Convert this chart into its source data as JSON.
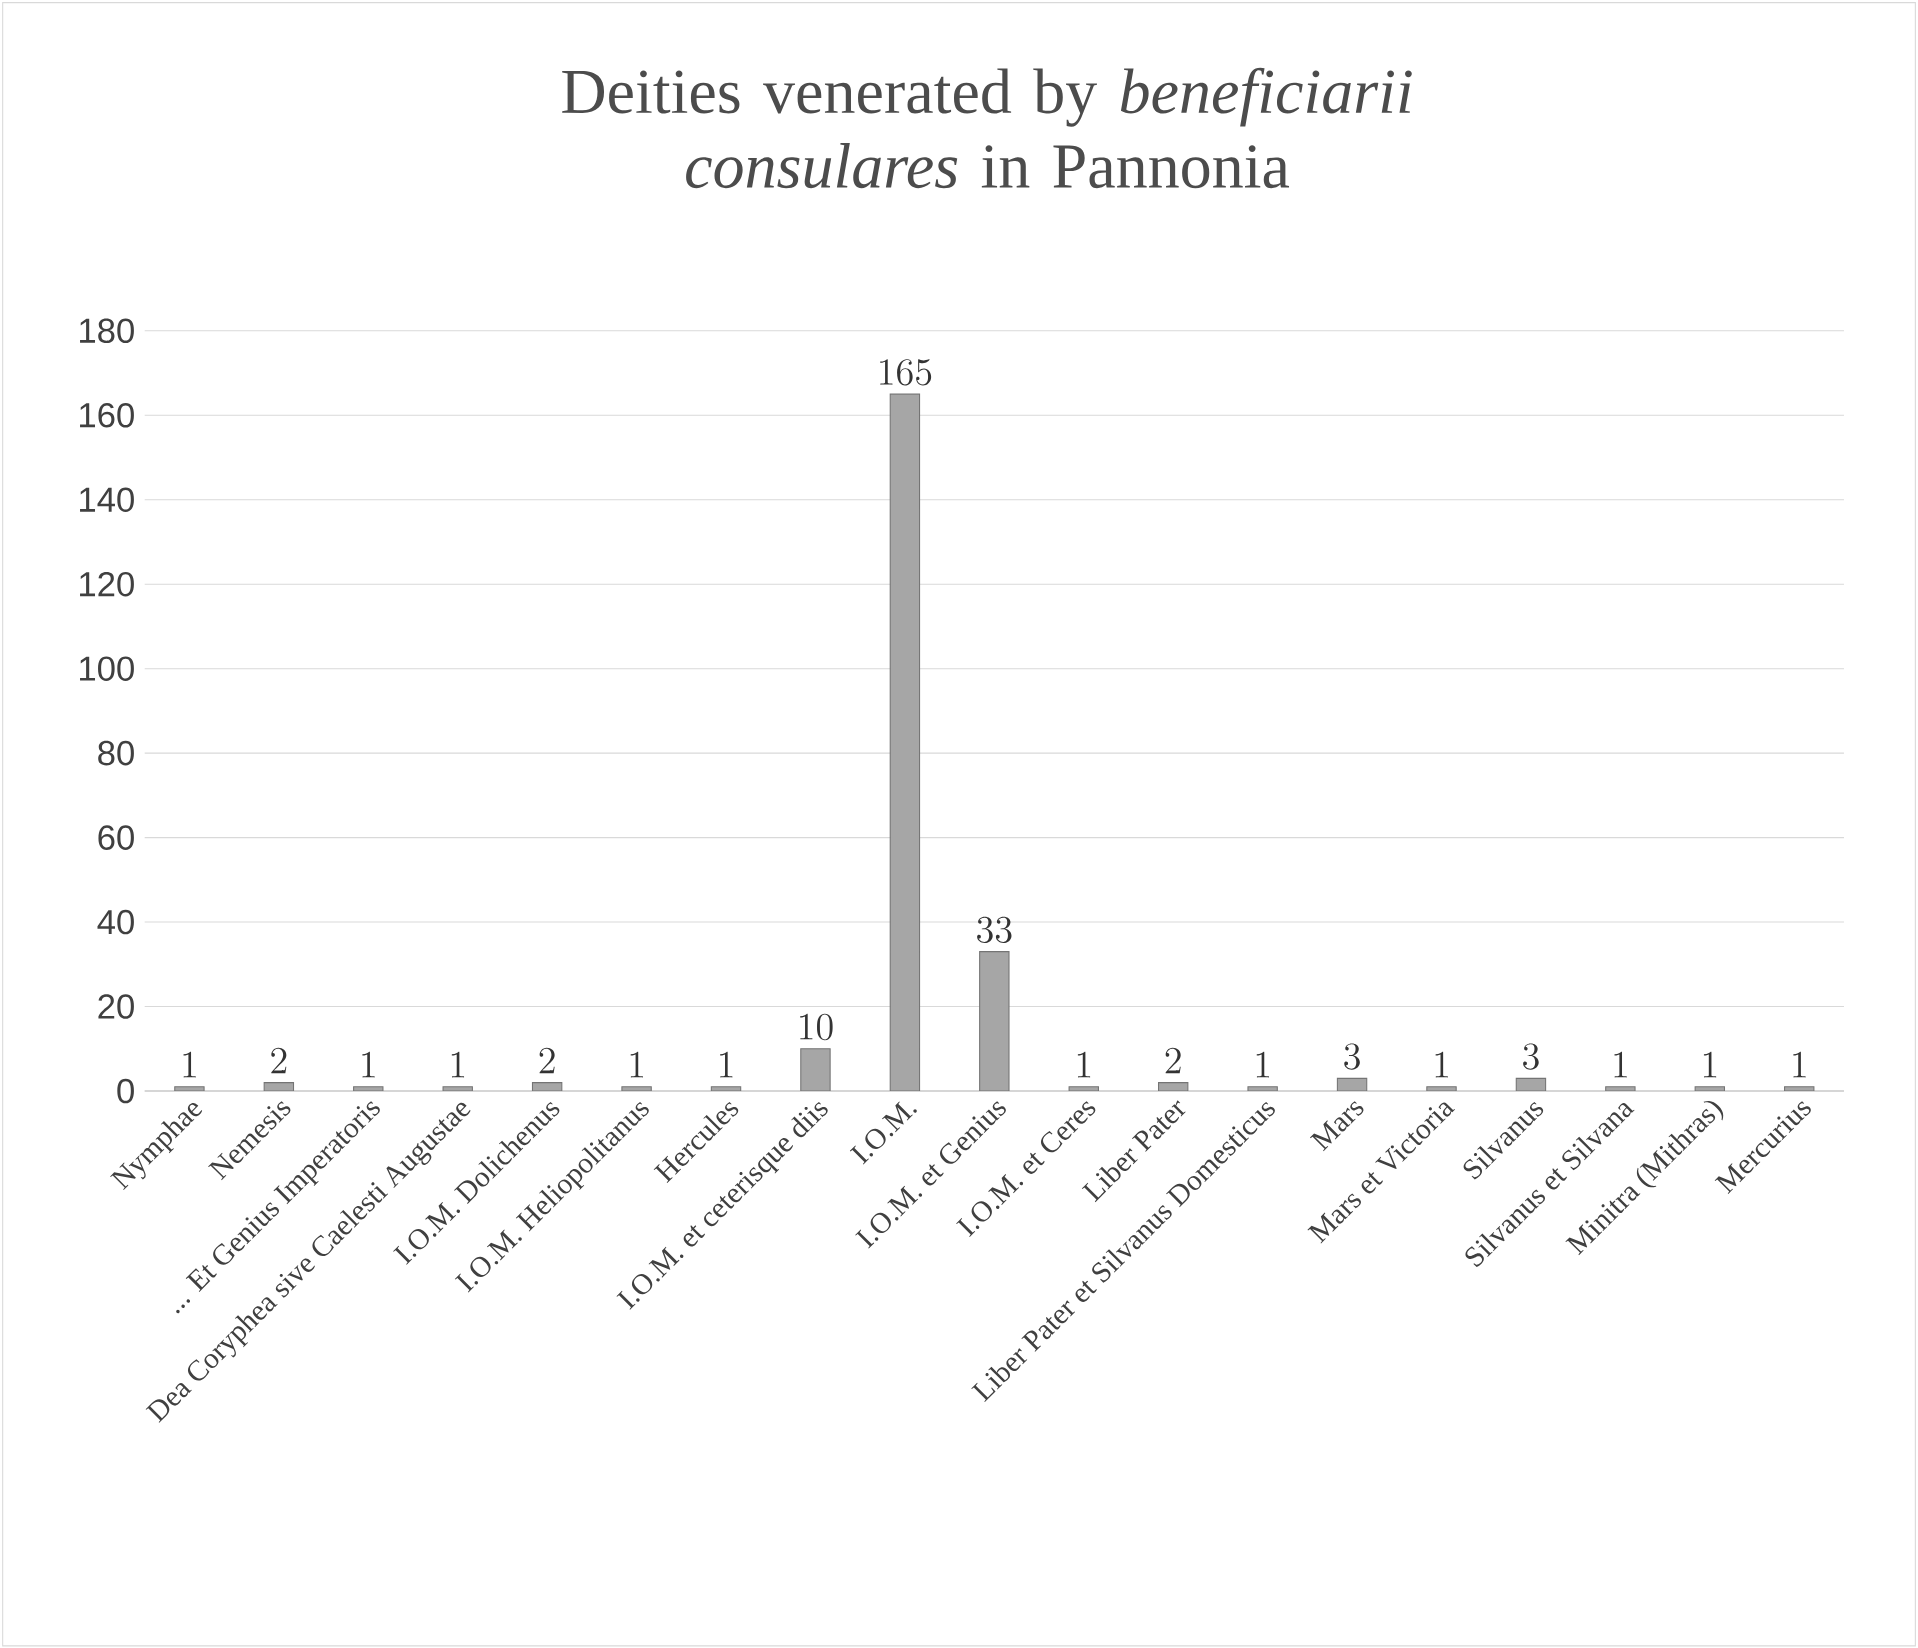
{
  "chart_data": {
    "type": "bar",
    "title": "Deities venerated by *beneficiarii consulares* in Pannonia",
    "categories": [
      "Nymphae",
      "Nemesis",
      "... Et Genius Imperatoris",
      "Dea Coryphea sive Caelesti Augustae",
      "I.O.M. Dolichenus",
      "I.O.M. Heliopolitanus",
      "Hercules",
      "I.O.M. et ceterisque diis",
      "I.O.M.",
      "I.O.M. et Genius",
      "I.O.M. et Ceres",
      "Liber Pater",
      "Liber Pater et Silvanus Domesticus",
      "Mars",
      "Mars et Victoria",
      "Silvanus",
      "Silvanus et Silvana",
      "Minitra (Mithras)",
      "Mercurius"
    ],
    "values": [
      1,
      2,
      1,
      1,
      2,
      1,
      1,
      10,
      165,
      33,
      1,
      2,
      1,
      3,
      1,
      3,
      1,
      1,
      1
    ],
    "color": "#a6a6a6",
    "ylim": [
      0,
      180
    ],
    "yticks": [
      0,
      20,
      40,
      60,
      80,
      100,
      120,
      140,
      160,
      180
    ],
    "grid": "y",
    "data_labels": true
  }
}
